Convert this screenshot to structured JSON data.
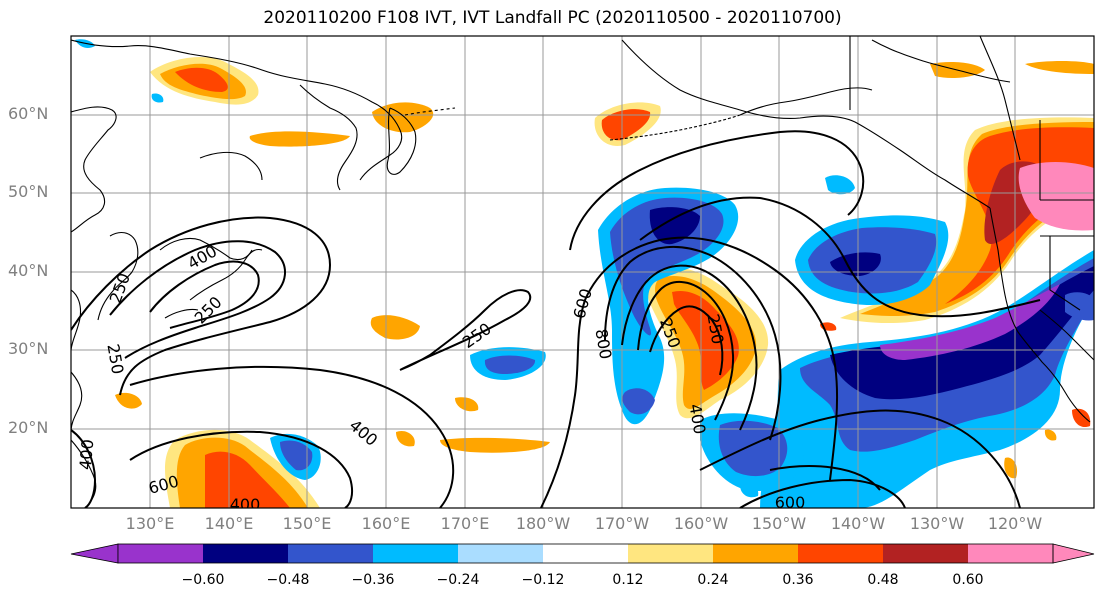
{
  "title": "2020110200 F108 IVT, IVT Landfall PC (2020110500 - 2020110700)",
  "lat_labels": [
    "60°N",
    "50°N",
    "40°N",
    "30°N",
    "20°N"
  ],
  "lon_labels": [
    "130°E",
    "140°E",
    "150°E",
    "160°E",
    "170°E",
    "180°W",
    "170°W",
    "160°W",
    "150°W",
    "140°W",
    "130°W",
    "120°W"
  ],
  "colorbar": {
    "colors": [
      "#9933cc",
      "#000080",
      "#3355cc",
      "#00bbff",
      "#aaddff",
      "#ffffff",
      "#ffe680",
      "#ffa500",
      "#ff4500",
      "#b22222",
      "#ff88bb"
    ],
    "tick_labels": [
      "−0.60",
      "−0.48",
      "−0.36",
      "−0.24",
      "−0.12",
      "0.12",
      "0.24",
      "0.36",
      "0.48",
      "0.60"
    ]
  },
  "contour_labels": [
    {
      "text": "250"
    },
    {
      "text": "400"
    },
    {
      "text": "250"
    },
    {
      "text": "250"
    },
    {
      "text": "400"
    },
    {
      "text": "600"
    },
    {
      "text": "400"
    },
    {
      "text": "250"
    },
    {
      "text": "400"
    },
    {
      "text": "600"
    },
    {
      "text": "800"
    },
    {
      "text": "250"
    },
    {
      "text": "250"
    },
    {
      "text": "400"
    },
    {
      "text": "600"
    }
  ]
}
